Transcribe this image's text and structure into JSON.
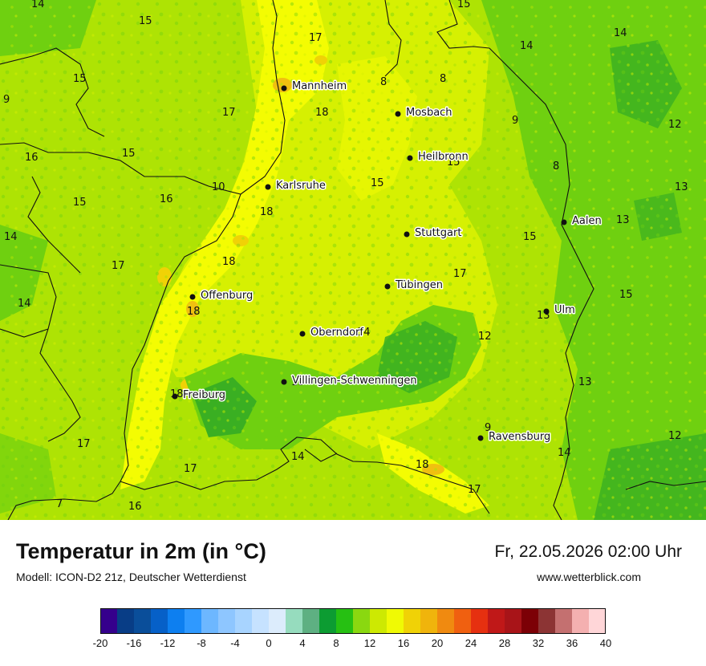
{
  "map": {
    "cities": [
      {
        "name": "Mannheim"
      },
      {
        "name": "Mosbach"
      },
      {
        "name": "Heilbronn"
      },
      {
        "name": "Karlsruhe"
      },
      {
        "name": "Stuttgart"
      },
      {
        "name": "Aalen"
      },
      {
        "name": "Tübingen"
      },
      {
        "name": "Offenburg"
      },
      {
        "name": "Ulm"
      },
      {
        "name": "Oberndorf"
      },
      {
        "name": "Villingen-Schwenningen"
      },
      {
        "name": "Freiburg"
      },
      {
        "name": "Ravensburg"
      }
    ],
    "value_labels": [
      "14",
      "15",
      "17",
      "15",
      "14",
      "14",
      "15",
      "9",
      "8",
      "17",
      "18",
      "8",
      "9",
      "12",
      "16",
      "15",
      "15",
      "8",
      "13",
      "15",
      "16",
      "10",
      "15",
      "18",
      "13",
      "14",
      "15",
      "17",
      "18",
      "14",
      "17",
      "15",
      "13",
      "18",
      "13",
      "14",
      "12",
      "13",
      "17",
      "18",
      "9",
      "12",
      "17",
      "14",
      "14",
      "18",
      "17",
      "7",
      "16"
    ],
    "colors": {
      "bright_yellow": "#f4fc02",
      "yellow_green": "#d6f002",
      "lime": "#aee304",
      "green": "#6fd010",
      "dark_green": "#3aaf22",
      "orange": "#f0b010"
    }
  },
  "footer": {
    "title": "Temperatur in 2m (in °C)",
    "model": "Modell: ICON-D2 21z, Deutscher Wetterdienst",
    "datetime": "Fr, 22.05.2026 02:00 Uhr",
    "website": "www.wetterblick.com"
  },
  "colorbar": {
    "colors": [
      "#35008c",
      "#083d86",
      "#0a4e9a",
      "#0660c8",
      "#0d7ff0",
      "#2f99ff",
      "#6db7ff",
      "#8ec6ff",
      "#a8d4ff",
      "#c6e2ff",
      "#dcecfc",
      "#96dcbe",
      "#5eb082",
      "#0c9c32",
      "#26c012",
      "#8ad810",
      "#cde902",
      "#f0fa04",
      "#f0d206",
      "#f0b40c",
      "#f08a10",
      "#f06010",
      "#e63010",
      "#c01818",
      "#a81418",
      "#7c0006",
      "#8c3434",
      "#c47070",
      "#f4b0b0",
      "#ffd6d8"
    ],
    "ticks": [
      "-20",
      "-16",
      "-12",
      "-8",
      "-4",
      "0",
      "4",
      "8",
      "12",
      "16",
      "20",
      "24",
      "28",
      "32",
      "36",
      "40"
    ]
  }
}
